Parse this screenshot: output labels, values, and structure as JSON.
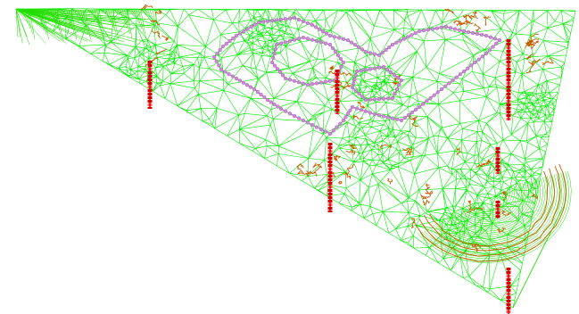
{
  "view": {
    "background": "#ffffff"
  },
  "colors": {
    "mesh_edge": "#00ee00",
    "mesh_edge_dense": "#22dd00",
    "contour_line": "#c85a00",
    "boring_marker": "#d40000",
    "boring_marker_light": "#ff6060",
    "survey_point": "#d08cd8",
    "survey_point_edge": "#a050b0",
    "survey_path": "#8a8a8a"
  },
  "layers": {
    "triangulated_mesh": "triangulated-mesh",
    "contours": "contour-lines",
    "survey_path": "survey-point-path",
    "boreholes": "borehole-markers"
  }
}
